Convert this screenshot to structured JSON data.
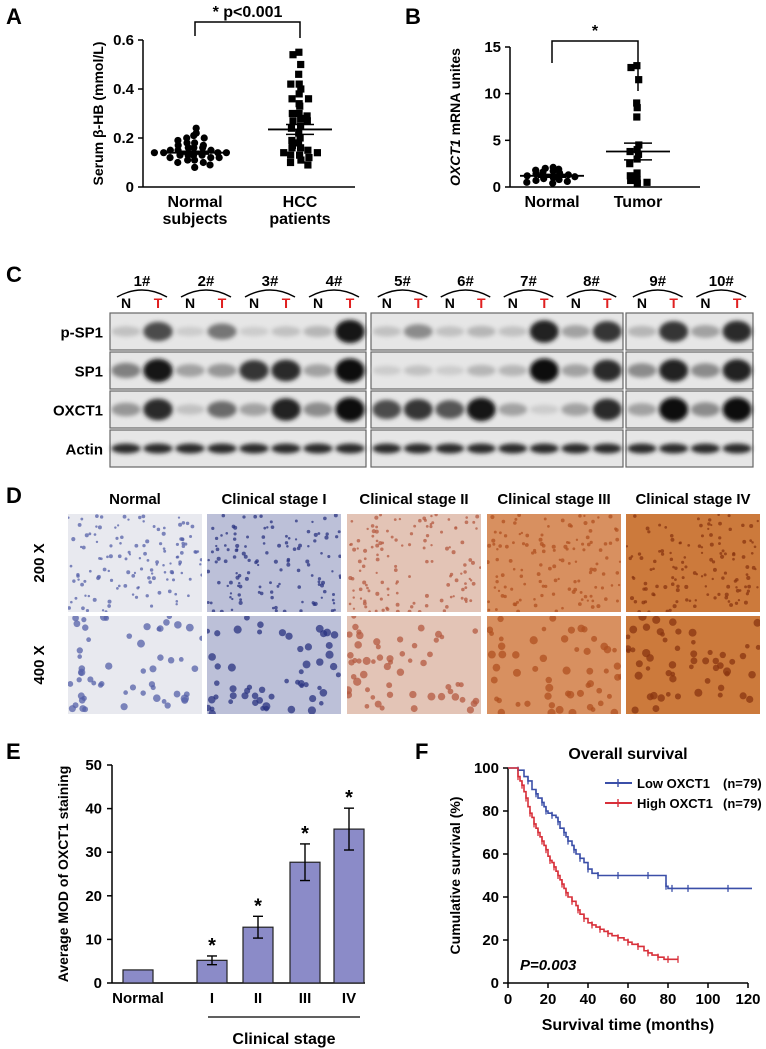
{
  "figure": {
    "panel_labels": [
      "A",
      "B",
      "C",
      "D",
      "E",
      "F"
    ]
  },
  "chart_data": [
    {
      "panel": "A",
      "type": "scatter",
      "ylabel": "Serum β-HB (mmol/L)",
      "ylim": [
        0,
        0.6
      ],
      "yticks": [
        "0",
        "0.2",
        "0.4",
        "0.6"
      ],
      "categories": [
        "Normal subjects",
        "HCC patients"
      ],
      "category_lines": [
        [
          "Normal",
          "subjects"
        ],
        [
          "HCC",
          "patients"
        ]
      ],
      "significance": "* p<0.001",
      "groups": [
        {
          "name": "Normal subjects",
          "mean": 0.14,
          "sem": 0.006,
          "values": [
            0.24,
            0.22,
            0.21,
            0.2,
            0.2,
            0.19,
            0.18,
            0.18,
            0.17,
            0.17,
            0.16,
            0.16,
            0.16,
            0.15,
            0.15,
            0.15,
            0.14,
            0.14,
            0.14,
            0.14,
            0.13,
            0.13,
            0.13,
            0.13,
            0.12,
            0.12,
            0.12,
            0.11,
            0.11,
            0.1,
            0.1,
            0.09,
            0.08
          ]
        },
        {
          "name": "HCC patients",
          "mean": 0.235,
          "sem": 0.02,
          "values": [
            0.55,
            0.54,
            0.5,
            0.46,
            0.42,
            0.42,
            0.4,
            0.38,
            0.36,
            0.36,
            0.34,
            0.33,
            0.3,
            0.3,
            0.29,
            0.28,
            0.27,
            0.27,
            0.25,
            0.24,
            0.22,
            0.2,
            0.19,
            0.18,
            0.17,
            0.16,
            0.16,
            0.15,
            0.14,
            0.14,
            0.13,
            0.13,
            0.12,
            0.11,
            0.1,
            0.09
          ]
        }
      ]
    },
    {
      "panel": "B",
      "type": "scatter",
      "ylabel_italic": "OXCT1",
      "ylabel_rest": " mRNA unites",
      "ylim": [
        0,
        15
      ],
      "yticks": [
        "0",
        "5",
        "10",
        "15"
      ],
      "categories": [
        "Normal",
        "Tumor"
      ],
      "significance": "*",
      "groups": [
        {
          "name": "Normal",
          "mean": 1.2,
          "sem": 0.15,
          "values": [
            2.1,
            2.0,
            1.9,
            1.8,
            1.7,
            1.6,
            1.5,
            1.4,
            1.3,
            1.2,
            1.1,
            1.0,
            0.9,
            0.8,
            0.7,
            0.6,
            0.5,
            0.4
          ]
        },
        {
          "name": "Tumor",
          "mean": 3.8,
          "sem": 0.9,
          "values": [
            13.0,
            12.8,
            11.5,
            9.0,
            8.5,
            7.5,
            4.5,
            4.0,
            3.8,
            3.5,
            3.0,
            2.5,
            1.5,
            1.2,
            0.8,
            0.7,
            0.5,
            0.4
          ]
        }
      ]
    },
    {
      "panel": "E",
      "type": "bar",
      "ylabel": "Average MOD of OXCT1 staining",
      "ylim": [
        0,
        50
      ],
      "yticks": [
        "0",
        "10",
        "20",
        "30",
        "40",
        "50"
      ],
      "categories": [
        "Normal",
        "I",
        "II",
        "III",
        "IV"
      ],
      "xlabel": "Clinical stage",
      "values": [
        3,
        5.2,
        12.8,
        27.7,
        35.3
      ],
      "errors": [
        0,
        1.0,
        2.5,
        4.2,
        4.8
      ],
      "stars": [
        "",
        "*",
        "*",
        "*",
        "*"
      ],
      "bar_color": "#8b8bc8"
    },
    {
      "panel": "F",
      "type": "line",
      "title": "Overall survival",
      "xlabel": "Survival time (months)",
      "ylabel": "Cumulative survival (%)",
      "xlim": [
        0,
        120
      ],
      "ylim": [
        0,
        100
      ],
      "xticks": [
        "0",
        "20",
        "40",
        "60",
        "80",
        "100",
        "120"
      ],
      "yticks": [
        "0",
        "20",
        "40",
        "60",
        "80",
        "100"
      ],
      "pvalue": "P=0.003",
      "series": [
        {
          "name": "Low OXCT1",
          "n": "(n=79)",
          "color": "#3b4fa8",
          "x": [
            0,
            5,
            8,
            10,
            12,
            14,
            15,
            17,
            18,
            19,
            20,
            22,
            24,
            25,
            26,
            28,
            29,
            30,
            32,
            33,
            34,
            36,
            38,
            40,
            42,
            45,
            50,
            55,
            60,
            70,
            78,
            79,
            80,
            82,
            85,
            90,
            100,
            110,
            122
          ],
          "y": [
            100,
            99,
            96,
            94,
            90,
            88,
            86,
            84,
            82,
            80,
            79,
            78,
            77,
            75,
            72,
            70,
            68,
            66,
            64,
            62,
            60,
            58,
            56,
            53,
            51,
            50,
            50,
            50,
            50,
            50,
            50,
            45,
            44,
            44,
            44,
            44,
            44,
            44,
            44
          ]
        },
        {
          "name": "High OXCT1",
          "n": "(n=79)",
          "color": "#d8303a",
          "x": [
            0,
            5,
            6,
            7,
            8,
            9,
            10,
            11,
            12,
            13,
            14,
            15,
            16,
            17,
            18,
            19,
            20,
            21,
            22,
            23,
            24,
            25,
            26,
            27,
            28,
            29,
            30,
            32,
            34,
            35,
            36,
            38,
            40,
            42,
            44,
            46,
            48,
            50,
            52,
            55,
            58,
            60,
            62,
            65,
            68,
            70,
            72,
            75,
            78,
            80,
            82,
            85
          ],
          "y": [
            100,
            96,
            94,
            92,
            89,
            86,
            82,
            79,
            77,
            74,
            72,
            70,
            68,
            66,
            64,
            62,
            59,
            57,
            56,
            54,
            52,
            50,
            48,
            46,
            44,
            42,
            40,
            38,
            36,
            34,
            32,
            30,
            28,
            27,
            26,
            25,
            24,
            23,
            22,
            21,
            20,
            19,
            18,
            17,
            15,
            14,
            13,
            12,
            11,
            11,
            11,
            11
          ]
        }
      ]
    }
  ],
  "western_blot": {
    "row_labels": [
      "p-SP1",
      "SP1",
      "OXCT1",
      "Actin"
    ],
    "pairs": [
      "1#",
      "2#",
      "3#",
      "4#",
      "5#",
      "6#",
      "7#",
      "8#",
      "9#",
      "10#"
    ],
    "lane_N": "N",
    "lane_T": "T",
    "intensity": {
      "p-SP1": [
        [
          0.15,
          0.7
        ],
        [
          0.1,
          0.5
        ],
        [
          0.1,
          0.15
        ],
        [
          0.2,
          0.95
        ],
        [
          0.15,
          0.4
        ],
        [
          0.15,
          0.2
        ],
        [
          0.15,
          0.9
        ],
        [
          0.3,
          0.8
        ],
        [
          0.2,
          0.8
        ],
        [
          0.3,
          0.85
        ]
      ],
      "SP1": [
        [
          0.45,
          0.95
        ],
        [
          0.3,
          0.35
        ],
        [
          0.8,
          0.85
        ],
        [
          0.3,
          1.0
        ],
        [
          0.1,
          0.15
        ],
        [
          0.1,
          0.2
        ],
        [
          0.2,
          1.0
        ],
        [
          0.3,
          0.85
        ],
        [
          0.4,
          0.9
        ],
        [
          0.4,
          0.9
        ]
      ],
      "OXCT1": [
        [
          0.35,
          0.85
        ],
        [
          0.15,
          0.55
        ],
        [
          0.3,
          0.9
        ],
        [
          0.4,
          1.0
        ],
        [
          0.7,
          0.8
        ],
        [
          0.65,
          0.95
        ],
        [
          0.3,
          0.1
        ],
        [
          0.3,
          0.85
        ],
        [
          0.3,
          1.0
        ],
        [
          0.4,
          1.0
        ]
      ],
      "Actin": [
        [
          0.85,
          0.85
        ],
        [
          0.85,
          0.85
        ],
        [
          0.85,
          0.85
        ],
        [
          0.85,
          0.85
        ],
        [
          0.85,
          0.85
        ],
        [
          0.85,
          0.85
        ],
        [
          0.85,
          0.85
        ],
        [
          0.85,
          0.85
        ],
        [
          0.85,
          0.85
        ],
        [
          0.85,
          0.85
        ]
      ]
    }
  },
  "ihc": {
    "columns": [
      "Normal",
      "Clinical stage I",
      "Clinical stage II",
      "Clinical stage III",
      "Clinical stage IV"
    ],
    "rows": [
      "200 X",
      "400 X"
    ]
  }
}
